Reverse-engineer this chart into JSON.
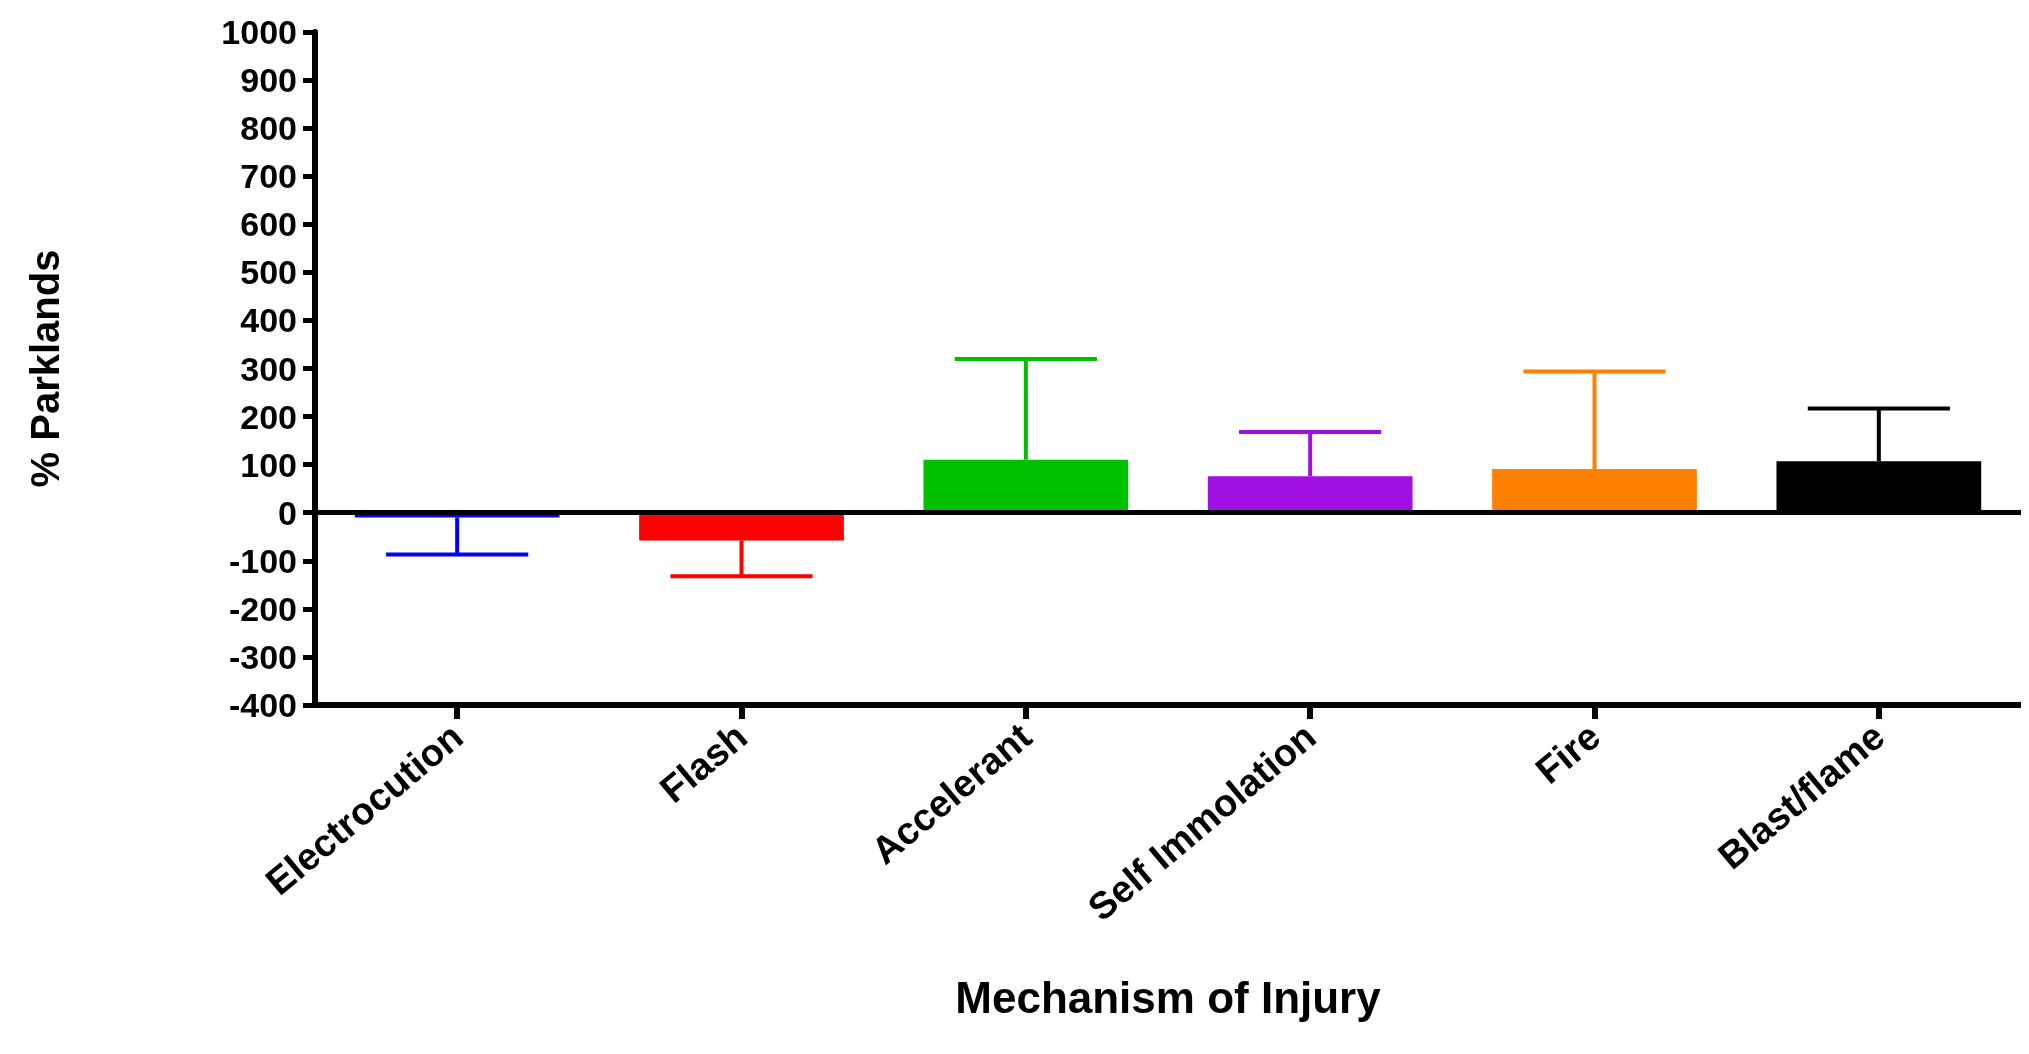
{
  "chart_data": {
    "type": "bar",
    "xlabel": "Mechanism of Injury",
    "ylabel": "% Parklands",
    "categories": [
      "Electrocution",
      "Flash",
      "Accelerant",
      "Self Immolation",
      "Fire",
      "Blast/flame"
    ],
    "values": [
      -10,
      -58,
      110,
      76,
      91,
      107
    ],
    "colors": [
      "#0000ff",
      "#ff0000",
      "#00c000",
      "#a010e0",
      "#ff8000",
      "#000000"
    ],
    "errors": [
      [
        -87,
        -10
      ],
      [
        -132,
        -58
      ],
      [
        110,
        320
      ],
      [
        76,
        168
      ],
      [
        91,
        294
      ],
      [
        107,
        217
      ]
    ],
    "ref_lines": [
      {
        "axis": "y",
        "value": 0,
        "label": null,
        "color": "#000000"
      }
    ],
    "ylim": [
      -400,
      1000
    ],
    "yticks": [
      -400,
      -300,
      -200,
      -100,
      0,
      100,
      200,
      300,
      400,
      500,
      600,
      700,
      800,
      900,
      1000
    ],
    "grid": false
  }
}
